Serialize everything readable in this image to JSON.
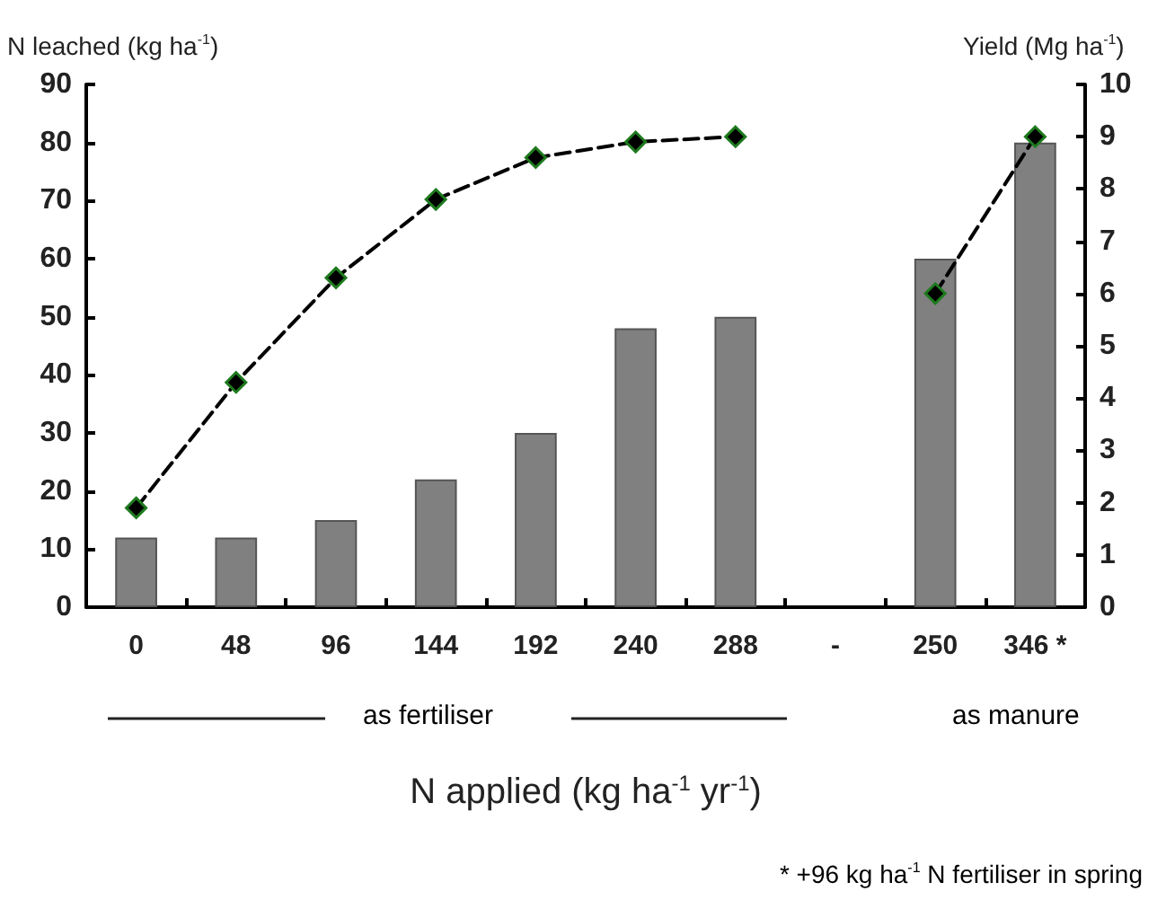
{
  "chart_data": {
    "type": "bar",
    "xlabel": "N applied (kg ha$^{-1}$ yr$^{-1}$)",
    "ylabel": "N leached (kg ha$^{-1}$)",
    "y2label": "Yield (Mg ha$^{-1}$)",
    "categories": [
      "0",
      "48",
      "96",
      "144",
      "192",
      "240",
      "288",
      "-",
      "250",
      "346 *"
    ],
    "series": [
      {
        "color": "#808080",
        "values": [
          12,
          12,
          15,
          22,
          30,
          48,
          50,
          null,
          60,
          80
        ]
      },
      {
        "type": "line",
        "axis": "y2",
        "color": "#000000",
        "marker": "diamond",
        "line_style": "dashed",
        "values": [
          1.9,
          4.3,
          6.3,
          7.8,
          8.6,
          8.9,
          9.0,
          null,
          6.0,
          9.0
        ]
      }
    ],
    "ylim": [
      0,
      90
    ],
    "yticks": [
      0,
      10,
      20,
      30,
      40,
      50,
      60,
      70,
      80,
      90
    ],
    "y2lim": [
      0,
      10
    ],
    "y2ticks": [
      0,
      1,
      2,
      3,
      4,
      5,
      6,
      7,
      8,
      9,
      10
    ],
    "annotations": [
      "as fertiliser",
      "as manure",
      "* +96 kg ha$^{-1}$ N fertiliser in spring"
    ]
  }
}
